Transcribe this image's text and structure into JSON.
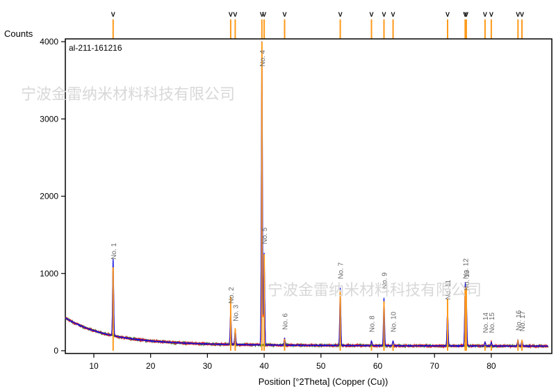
{
  "chart_data": {
    "type": "line",
    "title": "al-211-161216",
    "ylabel": "Counts",
    "xlabel": "Position [°2Theta] (Copper (Cu))",
    "xlim": [
      5,
      90
    ],
    "ylim": [
      0,
      4000
    ],
    "x_ticks": [
      "10",
      "20",
      "30",
      "40",
      "50",
      "60",
      "70",
      "80"
    ],
    "x_tick_values": [
      10,
      20,
      30,
      40,
      50,
      60,
      70,
      80
    ],
    "y_ticks": [
      "0",
      "1000",
      "2000",
      "3000",
      "4000"
    ],
    "y_tick_values": [
      0,
      1000,
      2000,
      3000,
      4000
    ],
    "grid": false,
    "colors": {
      "axes": "#000000",
      "observed": "#1010e0",
      "calculated": "#e02020",
      "background": "#2a8a2a",
      "reference": "#ff9a1a"
    },
    "peaks": [
      {
        "label": "No. 1",
        "x": 13.4,
        "y": 1000
      },
      {
        "label": "No. 2",
        "x": 34.1,
        "y": 430
      },
      {
        "label": "No. 3",
        "x": 34.9,
        "y": 200
      },
      {
        "label": "No. 4",
        "x": 39.6,
        "y": 3950
      },
      {
        "label": "No. 5",
        "x": 40.0,
        "y": 1200
      },
      {
        "label": "No. 6",
        "x": 43.6,
        "y": 90
      },
      {
        "label": "No. 7",
        "x": 53.4,
        "y": 750
      },
      {
        "label": "No. 8",
        "x": 58.9,
        "y": 60
      },
      {
        "label": "No. 9",
        "x": 61.1,
        "y": 620
      },
      {
        "label": "No. 10",
        "x": 62.7,
        "y": 60
      },
      {
        "label": "No. 11",
        "x": 72.3,
        "y": 480
      },
      {
        "label": "No. 12",
        "x": 75.4,
        "y": 750
      },
      {
        "label": "No. 13",
        "x": 75.6,
        "y": 600
      },
      {
        "label": "No. 14",
        "x": 78.9,
        "y": 50
      },
      {
        "label": "No. 15",
        "x": 80.0,
        "y": 50
      },
      {
        "label": "No. 16",
        "x": 84.7,
        "y": 80
      },
      {
        "label": "No. 17",
        "x": 85.4,
        "y": 70
      }
    ],
    "reference_sticks": [
      13.4,
      34.1,
      34.9,
      39.6,
      40.0,
      43.6,
      53.4,
      58.9,
      61.1,
      62.7,
      72.3,
      75.4,
      75.6,
      78.9,
      80.0,
      84.7,
      85.4
    ],
    "reference_stick_heights": [
      1080,
      700,
      290,
      4000,
      1250,
      150,
      780,
      60,
      640,
      80,
      670,
      820,
      820,
      60,
      60,
      140,
      140
    ],
    "tick_marker_glyph": "V"
  },
  "watermark": {
    "text": "宁波金雷纳米材料科技有限公司"
  }
}
